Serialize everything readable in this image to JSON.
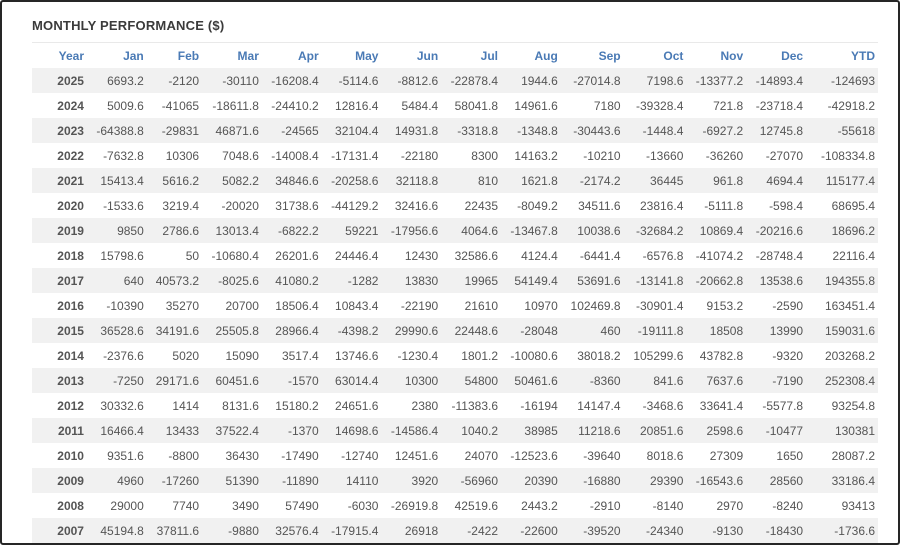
{
  "panel": {
    "title": "MONTHLY PERFORMANCE ($)"
  },
  "colors": {
    "header_text": "#4a7ab5",
    "negative": "#fa5b5b",
    "positive": "#555555",
    "year_text": "#333333",
    "row_stripe": "#f1f1f1",
    "frame_border": "#262626",
    "title_text": "#3b3b3b"
  },
  "table": {
    "columns": [
      "Year",
      "Jan",
      "Feb",
      "Mar",
      "Apr",
      "May",
      "Jun",
      "Jul",
      "Aug",
      "Sep",
      "Oct",
      "Nov",
      "Dec",
      "YTD"
    ],
    "rows": [
      {
        "year": "2025",
        "months": [
          6693.2,
          -2120,
          -30110,
          -16208.4,
          -5114.6,
          -8812.6,
          -22878.4,
          1944.6,
          -27014.8,
          7198.6,
          -13377.2,
          -14893.4
        ],
        "ytd": -124693
      },
      {
        "year": "2024",
        "months": [
          5009.6,
          -41065,
          -18611.8,
          -24410.2,
          12816.4,
          5484.4,
          58041.8,
          14961.6,
          7180,
          -39328.4,
          721.8,
          -23718.4
        ],
        "ytd": -42918.2
      },
      {
        "year": "2023",
        "months": [
          -64388.8,
          -29831,
          46871.6,
          -24565,
          32104.4,
          14931.8,
          -3318.8,
          -1348.8,
          -30443.6,
          -1448.4,
          -6927.2,
          12745.8
        ],
        "ytd": -55618
      },
      {
        "year": "2022",
        "months": [
          -7632.8,
          10306,
          7048.6,
          -14008.4,
          -17131.4,
          -22180,
          8300,
          14163.2,
          -10210,
          -13660,
          -36260,
          -27070
        ],
        "ytd": -108334.8
      },
      {
        "year": "2021",
        "months": [
          15413.4,
          5616.2,
          5082.2,
          34846.6,
          -20258.6,
          32118.8,
          810,
          1621.8,
          -2174.2,
          36445,
          961.8,
          4694.4
        ],
        "ytd": 115177.4
      },
      {
        "year": "2020",
        "months": [
          -1533.6,
          3219.4,
          -20020,
          31738.6,
          -44129.2,
          32416.6,
          22435,
          -8049.2,
          34511.6,
          23816.4,
          -5111.8,
          -598.4
        ],
        "ytd": 68695.4
      },
      {
        "year": "2019",
        "months": [
          9850,
          2786.6,
          13013.4,
          -6822.2,
          59221,
          -17956.6,
          4064.6,
          -13467.8,
          10038.6,
          -32684.2,
          10869.4,
          -20216.6
        ],
        "ytd": 18696.2
      },
      {
        "year": "2018",
        "months": [
          15798.6,
          50,
          -10680.4,
          26201.6,
          24446.4,
          12430,
          32586.6,
          4124.4,
          -6441.4,
          -6576.8,
          -41074.2,
          -28748.4
        ],
        "ytd": 22116.4
      },
      {
        "year": "2017",
        "months": [
          640,
          40573.2,
          -8025.6,
          41080.2,
          -1282,
          13830,
          19965,
          54149.4,
          53691.6,
          -13141.8,
          -20662.8,
          13538.6
        ],
        "ytd": 194355.8
      },
      {
        "year": "2016",
        "months": [
          -10390,
          35270,
          20700,
          18506.4,
          10843.4,
          -22190,
          21610,
          10970,
          102469.8,
          -30901.4,
          9153.2,
          -2590
        ],
        "ytd": 163451.4
      },
      {
        "year": "2015",
        "months": [
          36528.6,
          34191.6,
          25505.8,
          28966.4,
          -4398.2,
          29990.6,
          22448.6,
          -28048,
          460,
          -19111.8,
          18508,
          13990
        ],
        "ytd": 159031.6
      },
      {
        "year": "2014",
        "months": [
          -2376.6,
          5020,
          15090,
          3517.4,
          13746.6,
          -1230.4,
          1801.2,
          -10080.6,
          38018.2,
          105299.6,
          43782.8,
          -9320
        ],
        "ytd": 203268.2
      },
      {
        "year": "2013",
        "months": [
          -7250,
          29171.6,
          60451.6,
          -1570,
          63014.4,
          10300,
          54800,
          50461.6,
          -8360,
          841.6,
          7637.6,
          -7190
        ],
        "ytd": 252308.4
      },
      {
        "year": "2012",
        "months": [
          30332.6,
          1414,
          8131.6,
          15180.2,
          24651.6,
          2380,
          -11383.6,
          -16194,
          14147.4,
          -3468.6,
          33641.4,
          -5577.8
        ],
        "ytd": 93254.8
      },
      {
        "year": "2011",
        "months": [
          16466.4,
          13433,
          37522.4,
          -1370,
          14698.6,
          -14586.4,
          1040.2,
          38985,
          11218.6,
          20851.6,
          2598.6,
          -10477
        ],
        "ytd": 130381
      },
      {
        "year": "2010",
        "months": [
          9351.6,
          -8800,
          36430,
          -17490,
          -12740,
          12451.6,
          24070,
          -12523.6,
          -39640,
          8018.6,
          27309,
          1650
        ],
        "ytd": 28087.2
      },
      {
        "year": "2009",
        "months": [
          4960,
          -17260,
          51390,
          -11890,
          14110,
          3920,
          -56960,
          20390,
          -16880,
          29390,
          -16543.6,
          28560
        ],
        "ytd": 33186.4
      },
      {
        "year": "2008",
        "months": [
          29000,
          7740,
          3490,
          57490,
          -6030,
          -26919.8,
          42519.6,
          2443.2,
          -2910,
          -8140,
          2970,
          -8240
        ],
        "ytd": 93413
      },
      {
        "year": "2007",
        "months": [
          45194.8,
          37811.6,
          -9880,
          32576.4,
          -17915.4,
          26918,
          -2422,
          -22600,
          -39520,
          -24340,
          -9130,
          -18430
        ],
        "ytd": -1736.6
      }
    ]
  }
}
